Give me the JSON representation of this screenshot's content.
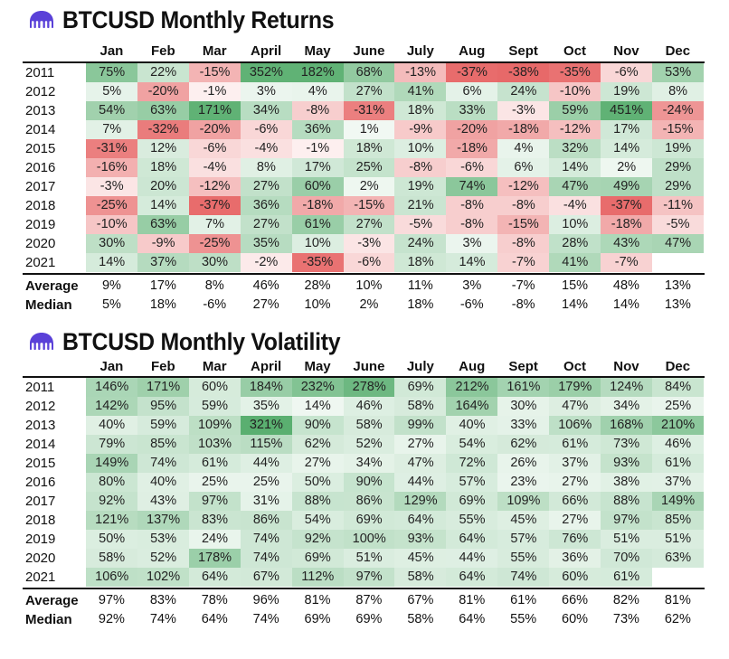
{
  "months": [
    "Jan",
    "Feb",
    "Mar",
    "April",
    "May",
    "June",
    "July",
    "Aug",
    "Sept",
    "Oct",
    "Nov",
    "Dec"
  ],
  "years": [
    "2011",
    "2012",
    "2013",
    "2014",
    "2015",
    "2016",
    "2017",
    "2018",
    "2019",
    "2020",
    "2021"
  ],
  "colors": {
    "positive": "#2e9a4a",
    "negative": "#e03a3a"
  },
  "chart_data": [
    {
      "type": "table",
      "title": "BTCUSD Monthly Returns",
      "rows": [
        [
          "75%",
          "22%",
          "-15%",
          "352%",
          "182%",
          "68%",
          "-13%",
          "-37%",
          "-38%",
          "-35%",
          "-6%",
          "53%"
        ],
        [
          "5%",
          "-20%",
          "-1%",
          "3%",
          "4%",
          "27%",
          "41%",
          "6%",
          "24%",
          "-10%",
          "19%",
          "8%"
        ],
        [
          "54%",
          "63%",
          "171%",
          "34%",
          "-8%",
          "-31%",
          "18%",
          "33%",
          "-3%",
          "59%",
          "451%",
          "-24%"
        ],
        [
          "7%",
          "-32%",
          "-20%",
          "-6%",
          "36%",
          "1%",
          "-9%",
          "-20%",
          "-18%",
          "-12%",
          "17%",
          "-15%"
        ],
        [
          "-31%",
          "12%",
          "-6%",
          "-4%",
          "-1%",
          "18%",
          "10%",
          "-18%",
          "4%",
          "32%",
          "14%",
          "19%"
        ],
        [
          "-16%",
          "18%",
          "-4%",
          "8%",
          "17%",
          "25%",
          "-8%",
          "-6%",
          "6%",
          "14%",
          "2%",
          "29%"
        ],
        [
          "-3%",
          "20%",
          "-12%",
          "27%",
          "60%",
          "2%",
          "19%",
          "74%",
          "-12%",
          "47%",
          "49%",
          "29%"
        ],
        [
          "-25%",
          "14%",
          "-37%",
          "36%",
          "-18%",
          "-15%",
          "21%",
          "-8%",
          "-8%",
          "-4%",
          "-37%",
          "-11%"
        ],
        [
          "-10%",
          "63%",
          "7%",
          "27%",
          "61%",
          "27%",
          "-5%",
          "-8%",
          "-15%",
          "10%",
          "-18%",
          "-5%"
        ],
        [
          "30%",
          "-9%",
          "-25%",
          "35%",
          "10%",
          "-3%",
          "24%",
          "3%",
          "-8%",
          "28%",
          "43%",
          "47%"
        ],
        [
          "14%",
          "37%",
          "30%",
          "-2%",
          "-35%",
          "-6%",
          "18%",
          "14%",
          "-7%",
          "41%",
          "-7%",
          ""
        ]
      ],
      "average_label": "Average",
      "median_label": "Median",
      "average": [
        "9%",
        "17%",
        "8%",
        "46%",
        "28%",
        "10%",
        "11%",
        "3%",
        "-7%",
        "15%",
        "48%",
        "13%"
      ],
      "median": [
        "5%",
        "18%",
        "-6%",
        "27%",
        "10%",
        "2%",
        "18%",
        "-6%",
        "-8%",
        "14%",
        "14%",
        "13%"
      ]
    },
    {
      "type": "table",
      "title": "BTCUSD Monthly Volatility",
      "rows": [
        [
          "146%",
          "171%",
          "60%",
          "184%",
          "232%",
          "278%",
          "69%",
          "212%",
          "161%",
          "179%",
          "124%",
          "84%"
        ],
        [
          "142%",
          "95%",
          "59%",
          "35%",
          "14%",
          "46%",
          "58%",
          "164%",
          "30%",
          "47%",
          "34%",
          "25%"
        ],
        [
          "40%",
          "59%",
          "109%",
          "321%",
          "90%",
          "58%",
          "99%",
          "40%",
          "33%",
          "106%",
          "168%",
          "210%"
        ],
        [
          "79%",
          "85%",
          "103%",
          "115%",
          "62%",
          "52%",
          "27%",
          "54%",
          "62%",
          "61%",
          "73%",
          "46%"
        ],
        [
          "149%",
          "74%",
          "61%",
          "44%",
          "27%",
          "34%",
          "47%",
          "72%",
          "26%",
          "37%",
          "93%",
          "61%"
        ],
        [
          "80%",
          "40%",
          "25%",
          "25%",
          "50%",
          "90%",
          "44%",
          "57%",
          "23%",
          "27%",
          "38%",
          "37%"
        ],
        [
          "92%",
          "43%",
          "97%",
          "31%",
          "88%",
          "86%",
          "129%",
          "69%",
          "109%",
          "66%",
          "88%",
          "149%"
        ],
        [
          "121%",
          "137%",
          "83%",
          "86%",
          "54%",
          "69%",
          "64%",
          "55%",
          "45%",
          "27%",
          "97%",
          "85%"
        ],
        [
          "50%",
          "53%",
          "24%",
          "74%",
          "92%",
          "100%",
          "93%",
          "64%",
          "57%",
          "76%",
          "51%",
          "51%"
        ],
        [
          "58%",
          "52%",
          "178%",
          "74%",
          "69%",
          "51%",
          "45%",
          "44%",
          "55%",
          "36%",
          "70%",
          "63%"
        ],
        [
          "106%",
          "102%",
          "64%",
          "67%",
          "112%",
          "97%",
          "58%",
          "64%",
          "74%",
          "60%",
          "61%",
          ""
        ]
      ],
      "average_label": "Average",
      "median_label": "Median",
      "average": [
        "97%",
        "83%",
        "78%",
        "96%",
        "81%",
        "87%",
        "67%",
        "81%",
        "61%",
        "66%",
        "82%",
        "81%"
      ],
      "median": [
        "92%",
        "74%",
        "64%",
        "74%",
        "69%",
        "69%",
        "58%",
        "64%",
        "55%",
        "60%",
        "73%",
        "62%"
      ]
    }
  ]
}
